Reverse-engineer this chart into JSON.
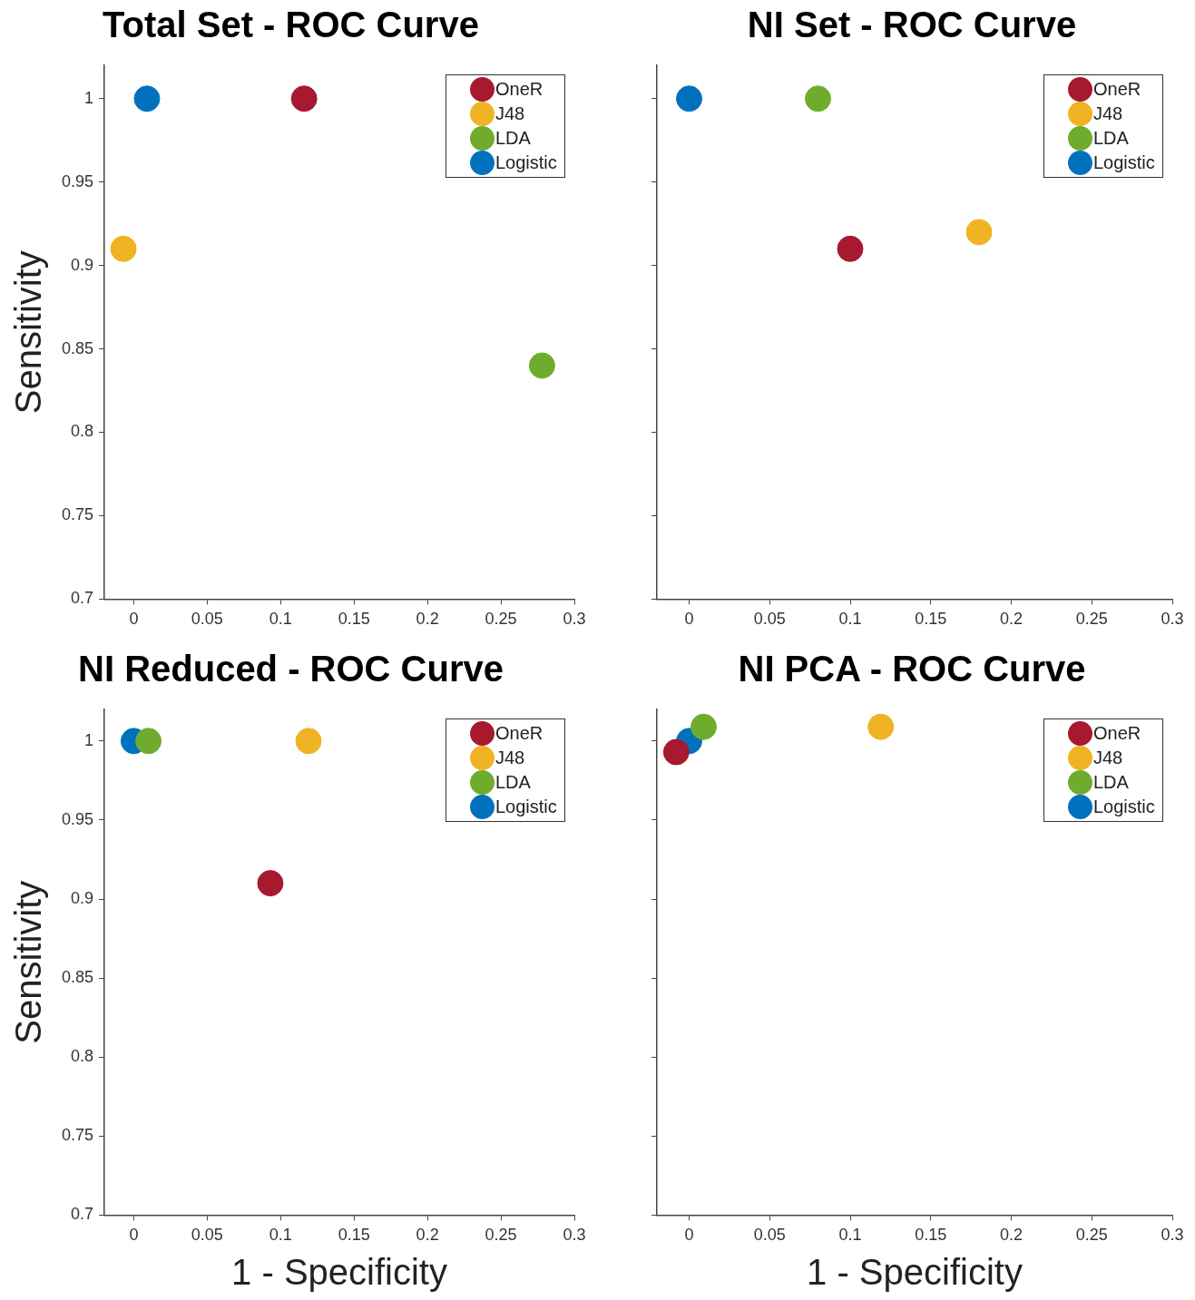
{
  "chart_data": [
    {
      "type": "scatter",
      "title": "Total Set - ROC Curve",
      "ylabel": "Sensitivity",
      "xlim": [
        -0.02,
        0.3
      ],
      "ylim": [
        0.7,
        1.02
      ],
      "xticks": [
        0,
        0.05,
        0.1,
        0.15,
        0.2,
        0.25,
        0.3
      ],
      "yticks": [
        0.7,
        0.75,
        0.8,
        0.85,
        0.9,
        0.95,
        1
      ],
      "grid": false,
      "legend": "top right",
      "marker": "circle",
      "series": [
        {
          "name": "OneR",
          "color": "#a6192e",
          "x": [
            0.116
          ],
          "values": [
            1
          ]
        },
        {
          "name": "J48",
          "color": "#f0b323",
          "x": [
            -0.007
          ],
          "values": [
            0.91
          ]
        },
        {
          "name": "LDA",
          "color": "#6fac2e",
          "x": [
            0.278
          ],
          "values": [
            0.84
          ]
        },
        {
          "name": "Logistic",
          "color": "#0072bd",
          "x": [
            0.009
          ],
          "values": [
            1
          ]
        }
      ]
    },
    {
      "type": "scatter",
      "title": "NI Set - ROC Curve",
      "xlim": [
        -0.02,
        0.3
      ],
      "ylim": [
        0.7,
        1.02
      ],
      "xticks": [
        0,
        0.05,
        0.1,
        0.15,
        0.2,
        0.25,
        0.3
      ],
      "yticks": [
        0.7,
        0.75,
        0.8,
        0.85,
        0.9,
        0.95,
        1
      ],
      "grid": false,
      "legend": "top right",
      "marker": "circle",
      "tick_labels": "x",
      "series": [
        {
          "name": "OneR",
          "color": "#a6192e",
          "x": [
            0.1
          ],
          "values": [
            0.91
          ]
        },
        {
          "name": "J48",
          "color": "#f0b323",
          "x": [
            0.18
          ],
          "values": [
            0.92
          ]
        },
        {
          "name": "LDA",
          "color": "#6fac2e",
          "x": [
            0.08
          ],
          "values": [
            1
          ]
        },
        {
          "name": "Logistic",
          "color": "#0072bd",
          "x": [
            0
          ],
          "values": [
            1
          ]
        }
      ]
    },
    {
      "type": "scatter",
      "title": "NI Reduced - ROC Curve",
      "xlabel": "1 - Specificity",
      "ylabel": "Sensitivity",
      "xlim": [
        -0.02,
        0.3
      ],
      "ylim": [
        0.7,
        1.02
      ],
      "xticks": [
        0,
        0.05,
        0.1,
        0.15,
        0.2,
        0.25,
        0.3
      ],
      "yticks": [
        0.7,
        0.75,
        0.8,
        0.85,
        0.9,
        0.95,
        1
      ],
      "grid": false,
      "legend": "top right",
      "marker": "circle",
      "series": [
        {
          "name": "OneR",
          "color": "#a6192e",
          "x": [
            0.093
          ],
          "values": [
            0.91
          ]
        },
        {
          "name": "J48",
          "color": "#f0b323",
          "x": [
            0.119
          ],
          "values": [
            1
          ]
        },
        {
          "name": "LDA",
          "color": "#6fac2e",
          "x": [
            0.01
          ],
          "values": [
            1
          ]
        },
        {
          "name": "Logistic",
          "color": "#0072bd",
          "x": [
            0
          ],
          "values": [
            1
          ]
        }
      ]
    },
    {
      "type": "scatter",
      "title": "NI PCA - ROC Curve",
      "xlabel": "1 - Specificity",
      "xlim": [
        -0.02,
        0.3
      ],
      "ylim": [
        0.7,
        1.02
      ],
      "xticks": [
        0,
        0.05,
        0.1,
        0.15,
        0.2,
        0.25,
        0.3
      ],
      "yticks": [
        0.7,
        0.75,
        0.8,
        0.85,
        0.9,
        0.95,
        1
      ],
      "grid": false,
      "legend": "top right",
      "marker": "circle",
      "tick_labels": "x",
      "series": [
        {
          "name": "OneR",
          "color": "#a6192e",
          "x": [
            -0.008
          ],
          "values": [
            0.993
          ]
        },
        {
          "name": "J48",
          "color": "#f0b323",
          "x": [
            0.119
          ],
          "values": [
            1.009
          ]
        },
        {
          "name": "LDA",
          "color": "#6fac2e",
          "x": [
            0.009
          ],
          "values": [
            1.009
          ]
        },
        {
          "name": "Logistic",
          "color": "#0072bd",
          "x": [
            0
          ],
          "values": [
            1
          ]
        }
      ]
    }
  ]
}
